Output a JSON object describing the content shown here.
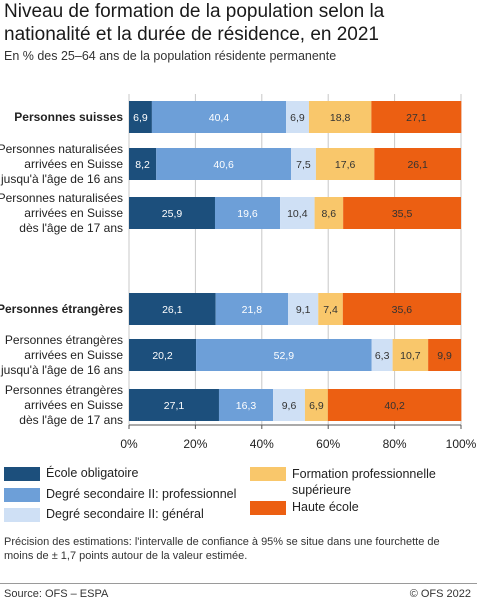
{
  "title": "Niveau de formation de la population selon la nationalité et la durée de résidence, en 2021",
  "subtitle": "En % des 25–64 ans de la population résidente permanente",
  "chart_data": {
    "type": "bar",
    "orientation": "horizontal",
    "stacked": true,
    "categories": [
      [
        "Personnes suisses"
      ],
      [
        "Personnes naturalisées",
        "arrivées en Suisse",
        "jusqu'à l'âge de 16 ans"
      ],
      [
        "Personnes naturalisées",
        "arrivées en Suisse",
        "dès l'âge de 17 ans"
      ],
      [
        "Personnes étrangères"
      ],
      [
        "Personnes étrangères",
        "arrivées en Suisse",
        "jusqu'à l'âge de 16 ans"
      ],
      [
        "Personnes étrangères",
        "arrivées en Suisse",
        "dès l'âge de 17 ans"
      ]
    ],
    "bold_categories": [
      0,
      3
    ],
    "series": [
      {
        "name": "École obligatoire",
        "color": "#1c4f7c",
        "text_color": "#ffffff",
        "values": [
          6.9,
          8.2,
          25.9,
          26.1,
          20.2,
          27.1
        ],
        "labels": [
          "6,9",
          "8,2",
          "25,9",
          "26,1",
          "20,2",
          "27,1"
        ]
      },
      {
        "name": "Degré secondaire II: professionnel",
        "color": "#6d9fd8",
        "text_color": "#ffffff",
        "values": [
          40.4,
          40.6,
          19.6,
          21.8,
          52.9,
          16.3
        ],
        "labels": [
          "40,4",
          "40,6",
          "19,6",
          "21,8",
          "52,9",
          "16,3"
        ]
      },
      {
        "name": "Degré secondaire II: général",
        "color": "#cfe0f5",
        "text_color": "#333333",
        "values": [
          6.9,
          7.5,
          10.4,
          9.1,
          6.3,
          9.6
        ],
        "labels": [
          "6,9",
          "7,5",
          "10,4",
          "9,1",
          "6,3",
          "9,6"
        ]
      },
      {
        "name": "Formation professionnelle supérieure",
        "color": "#f9c76b",
        "text_color": "#333333",
        "values": [
          18.8,
          17.6,
          8.6,
          7.4,
          10.7,
          6.9
        ],
        "labels": [
          "18,8",
          "17,6",
          "8,6",
          "7,4",
          "10,7",
          "6,9"
        ]
      },
      {
        "name": "Haute école",
        "color": "#ec5f12",
        "text_color": "#333333",
        "values": [
          27.1,
          26.1,
          35.5,
          35.6,
          9.9,
          40.2
        ],
        "labels": [
          "27,1",
          "26,1",
          "35,5",
          "35,6",
          "9,9",
          "40,2"
        ]
      }
    ],
    "xlim": [
      0,
      100
    ],
    "xticks": [
      "0%",
      "20%",
      "40%",
      "60%",
      "80%",
      "100%"
    ],
    "grid": true
  },
  "legend": [
    {
      "label": "École obligatoire",
      "color": "#1c4f7c"
    },
    {
      "label": "Degré secondaire II: professionnel",
      "color": "#6d9fd8"
    },
    {
      "label": "Degré secondaire II: général",
      "color": "#cfe0f5"
    },
    {
      "label": "Formation professionnelle supérieure",
      "color": "#f9c76b"
    },
    {
      "label": "Haute école",
      "color": "#ec5f12"
    }
  ],
  "footnote": "Précision des estimations: l'intervalle de confiance à 95% se situe dans une fourchette de moins de ± 1,7 points autour de la valeur estimée.",
  "source": "Source: OFS – ESPA",
  "copyright": "© OFS 2022"
}
